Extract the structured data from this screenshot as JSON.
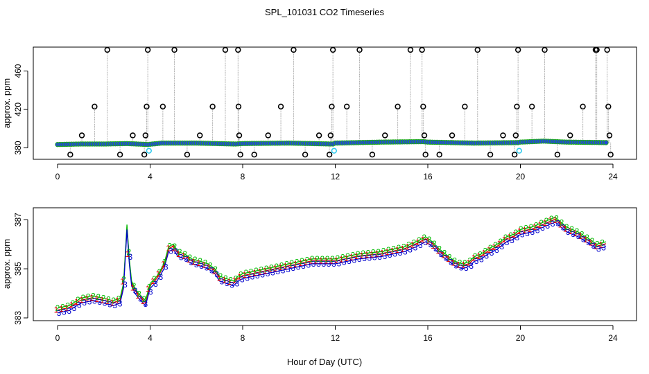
{
  "title": "SPL_101031  CO2 Timeseries",
  "xlabel": "Hour of Day (UTC)",
  "chart_data": [
    {
      "type": "scatter",
      "panel": "top",
      "ylabel": "approx. ppm",
      "xlim": [
        0,
        24
      ],
      "ylim": [
        371,
        482
      ],
      "xticks": [
        "0",
        "4",
        "8",
        "12",
        "16",
        "20",
        "24"
      ],
      "yticks": [
        "380",
        "420",
        "460"
      ],
      "baseline_series": {
        "name": "CO2 baseline",
        "x": [
          0,
          1,
          2,
          3,
          3.9,
          4.5,
          6,
          7.7,
          8,
          10,
          11.9,
          12,
          14,
          15.8,
          16,
          18,
          19.9,
          20,
          21,
          22,
          23.7
        ],
        "y": [
          383.5,
          384,
          384,
          384.5,
          383.5,
          385,
          385,
          384,
          384.5,
          385,
          384,
          385,
          386,
          386.5,
          386,
          385,
          385.5,
          386,
          387,
          386,
          385.5
        ]
      },
      "spikes": [
        {
          "x": 0.55,
          "y": 373
        },
        {
          "x": 1.05,
          "y": 393
        },
        {
          "x": 1.6,
          "y": 423
        },
        {
          "x": 2.15,
          "y": 482
        },
        {
          "x": 2.7,
          "y": 373
        },
        {
          "x": 3.25,
          "y": 393
        },
        {
          "x": 3.75,
          "y": 373
        },
        {
          "x": 3.8,
          "y": 393
        },
        {
          "x": 3.85,
          "y": 423
        },
        {
          "x": 3.9,
          "y": 482
        },
        {
          "x": 4.55,
          "y": 423
        },
        {
          "x": 5.05,
          "y": 482
        },
        {
          "x": 5.6,
          "y": 373
        },
        {
          "x": 6.15,
          "y": 393
        },
        {
          "x": 6.7,
          "y": 423
        },
        {
          "x": 7.25,
          "y": 482
        },
        {
          "x": 7.8,
          "y": 482
        },
        {
          "x": 7.82,
          "y": 423
        },
        {
          "x": 7.85,
          "y": 393
        },
        {
          "x": 7.9,
          "y": 373
        },
        {
          "x": 8.5,
          "y": 373
        },
        {
          "x": 9.1,
          "y": 393
        },
        {
          "x": 9.65,
          "y": 423
        },
        {
          "x": 10.2,
          "y": 482
        },
        {
          "x": 10.7,
          "y": 373
        },
        {
          "x": 11.3,
          "y": 393
        },
        {
          "x": 11.75,
          "y": 373
        },
        {
          "x": 11.8,
          "y": 393
        },
        {
          "x": 11.85,
          "y": 423
        },
        {
          "x": 11.9,
          "y": 482
        },
        {
          "x": 12.5,
          "y": 423
        },
        {
          "x": 13.05,
          "y": 482
        },
        {
          "x": 13.6,
          "y": 373
        },
        {
          "x": 14.15,
          "y": 393
        },
        {
          "x": 14.7,
          "y": 423
        },
        {
          "x": 15.25,
          "y": 482
        },
        {
          "x": 15.75,
          "y": 482
        },
        {
          "x": 15.8,
          "y": 423
        },
        {
          "x": 15.85,
          "y": 393
        },
        {
          "x": 15.9,
          "y": 373
        },
        {
          "x": 16.5,
          "y": 373
        },
        {
          "x": 17.05,
          "y": 393
        },
        {
          "x": 17.6,
          "y": 423
        },
        {
          "x": 18.15,
          "y": 482
        },
        {
          "x": 18.7,
          "y": 373
        },
        {
          "x": 19.25,
          "y": 393
        },
        {
          "x": 19.75,
          "y": 373
        },
        {
          "x": 19.8,
          "y": 393
        },
        {
          "x": 19.85,
          "y": 423
        },
        {
          "x": 19.9,
          "y": 482
        },
        {
          "x": 20.5,
          "y": 423
        },
        {
          "x": 21.05,
          "y": 482
        },
        {
          "x": 21.6,
          "y": 373
        },
        {
          "x": 22.15,
          "y": 393
        },
        {
          "x": 22.7,
          "y": 423
        },
        {
          "x": 23.25,
          "y": 482
        },
        {
          "x": 23.3,
          "y": 482
        },
        {
          "x": 23.75,
          "y": 482
        },
        {
          "x": 23.8,
          "y": 423
        },
        {
          "x": 23.85,
          "y": 393
        },
        {
          "x": 23.9,
          "y": 373
        }
      ],
      "cyan_points": [
        {
          "x": 3.95,
          "y": 377
        },
        {
          "x": 11.95,
          "y": 377
        },
        {
          "x": 19.95,
          "y": 377
        }
      ],
      "colors": {
        "circle_fill": "#2244dd",
        "circle_edge": "#22aa22",
        "spike_edge": "#000000",
        "line": "#aaaaaa",
        "cyan": "#33ccee"
      }
    },
    {
      "type": "line",
      "panel": "bottom",
      "ylabel": "approx. ppm",
      "xlim": [
        0,
        24
      ],
      "ylim": [
        383,
        387.4
      ],
      "xticks": [
        "0",
        "4",
        "8",
        "12",
        "16",
        "20",
        "24"
      ],
      "yticks": [
        "383",
        "385",
        "387"
      ],
      "series": [
        {
          "name": "1",
          "color": "#dd0000",
          "offset": 0.12
        },
        {
          "name": "2",
          "color": "#00bb00",
          "offset": 0.2
        },
        {
          "name": "3",
          "color": "#0000cc",
          "offset": 0.0
        }
      ],
      "x": [
        0,
        0.5,
        1,
        1.5,
        2,
        2.4,
        2.7,
        2.85,
        2.95,
        3.0,
        3.1,
        3.2,
        3.35,
        3.5,
        3.7,
        3.8,
        4.0,
        4.3,
        4.6,
        4.8,
        5.0,
        5.2,
        5.5,
        5.8,
        6.2,
        6.5,
        6.8,
        7.0,
        7.3,
        7.6,
        7.8,
        8.0,
        9,
        10,
        11,
        12,
        13,
        14,
        15,
        15.5,
        15.9,
        16.2,
        16.5,
        16.9,
        17.2,
        17.5,
        17.8,
        18.0,
        18.3,
        18.6,
        19.0,
        19.4,
        19.7,
        20.0,
        20.5,
        21.0,
        21.5,
        22.0,
        22.5,
        23.0,
        23.3,
        23.7
      ],
      "values": [
        383.2,
        383.3,
        383.6,
        383.7,
        383.6,
        383.5,
        383.6,
        384.2,
        385.8,
        386.6,
        385.2,
        384.3,
        384.0,
        383.8,
        383.6,
        383.5,
        384.2,
        384.5,
        385.0,
        385.7,
        385.8,
        385.5,
        385.4,
        385.2,
        385.1,
        385.0,
        384.8,
        384.5,
        384.4,
        384.3,
        384.5,
        384.6,
        384.8,
        385.0,
        385.2,
        385.2,
        385.4,
        385.5,
        385.7,
        385.9,
        386.1,
        385.9,
        385.6,
        385.3,
        385.1,
        385.0,
        385.1,
        385.3,
        385.4,
        385.6,
        385.8,
        386.1,
        386.2,
        386.4,
        386.5,
        386.7,
        386.9,
        386.5,
        386.3,
        386.0,
        385.8,
        385.9
      ]
    }
  ]
}
